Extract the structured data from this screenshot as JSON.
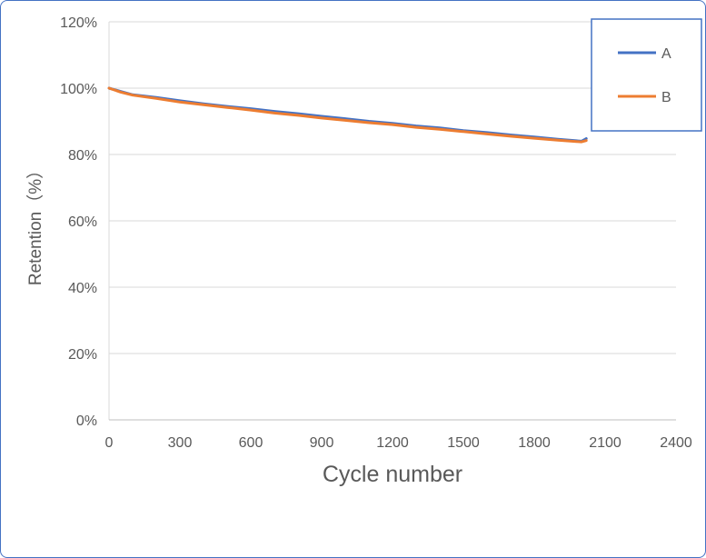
{
  "chart_data": {
    "type": "line",
    "title": "",
    "xlabel": "Cycle number",
    "ylabel": "Retention（%）",
    "xlim": [
      0,
      2400
    ],
    "ylim": [
      0,
      120
    ],
    "x_ticks": [
      0,
      300,
      600,
      900,
      1200,
      1500,
      1800,
      2100,
      2400
    ],
    "y_ticks": [
      0,
      20,
      40,
      60,
      80,
      100,
      120
    ],
    "x_tick_labels": [
      "0",
      "300",
      "600",
      "900",
      "1200",
      "1500",
      "1800",
      "2100",
      "2400"
    ],
    "y_tick_labels": [
      "0%",
      "20%",
      "40%",
      "60%",
      "80%",
      "100%",
      "120%"
    ],
    "grid": "horizontal",
    "legend_position": "top-right",
    "series": [
      {
        "name": "A",
        "color": "#4472c4",
        "x": [
          0,
          50,
          100,
          200,
          300,
          400,
          500,
          600,
          700,
          800,
          900,
          1000,
          1100,
          1200,
          1300,
          1400,
          1500,
          1600,
          1700,
          1800,
          1900,
          2000,
          2020
        ],
        "y": [
          100,
          99.0,
          98.0,
          97.2,
          96.2,
          95.3,
          94.5,
          93.8,
          93.0,
          92.3,
          91.5,
          90.8,
          90.0,
          89.4,
          88.6,
          88.0,
          87.2,
          86.6,
          85.9,
          85.3,
          84.6,
          84.0,
          84.8
        ]
      },
      {
        "name": "B",
        "color": "#ed7d31",
        "x": [
          0,
          50,
          100,
          200,
          300,
          400,
          500,
          600,
          700,
          800,
          900,
          1000,
          1100,
          1200,
          1300,
          1400,
          1500,
          1600,
          1700,
          1800,
          1900,
          2000,
          2020
        ],
        "y": [
          100,
          98.8,
          97.9,
          96.9,
          95.8,
          95.0,
          94.2,
          93.4,
          92.5,
          91.8,
          91.0,
          90.3,
          89.6,
          89.0,
          88.2,
          87.6,
          86.9,
          86.2,
          85.5,
          84.9,
          84.3,
          83.8,
          84.2
        ]
      }
    ]
  }
}
